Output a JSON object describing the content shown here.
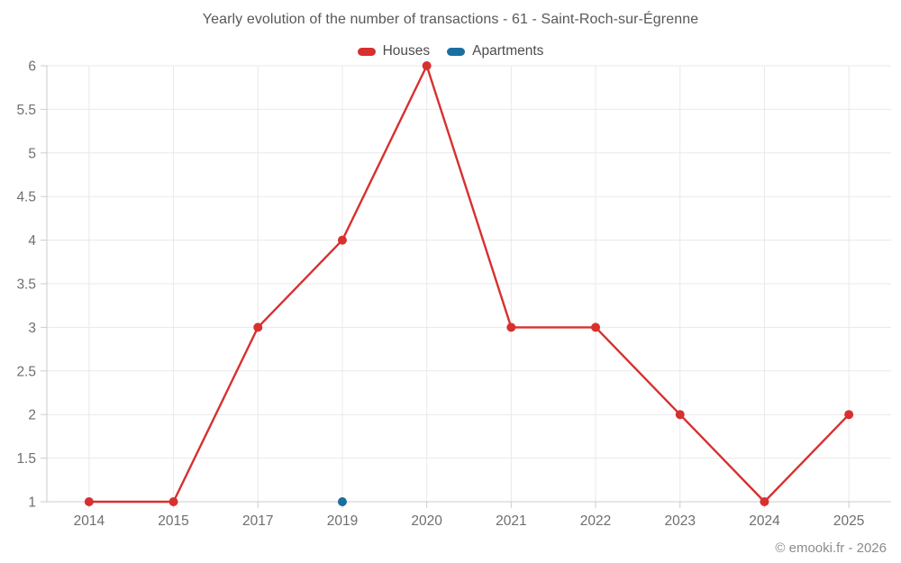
{
  "title": "Yearly evolution of the number of transactions - 61 - Saint-Roch-sur-Égrenne",
  "legend": {
    "items": [
      {
        "label": "Houses",
        "color": "#d7302f"
      },
      {
        "label": "Apartments",
        "color": "#1a6f9f"
      }
    ]
  },
  "footer": "© emooki.fr - 2026",
  "colors": {
    "grid": "#e9e9e9",
    "axis": "#cccccc",
    "axis_label": "#6e6e6e",
    "title_text": "#58585a",
    "legend_text": "#4d4d4d",
    "footer_text": "#8c8c8c",
    "background": "#ffffff"
  },
  "chart_data": {
    "type": "line",
    "title": "Yearly evolution of the number of transactions - 61 - Saint-Roch-sur-Égrenne",
    "categories": [
      "2014",
      "2015",
      "2017",
      "2019",
      "2020",
      "2021",
      "2022",
      "2023",
      "2024",
      "2025"
    ],
    "series": [
      {
        "name": "Houses",
        "color": "#d7302f",
        "values": [
          1,
          1,
          3,
          4,
          6,
          3,
          3,
          2,
          1,
          2
        ]
      },
      {
        "name": "Apartments",
        "color": "#1a6f9f",
        "values": [
          null,
          null,
          null,
          1,
          null,
          null,
          null,
          null,
          null,
          null
        ]
      }
    ],
    "yticks": [
      1,
      1.5,
      2,
      2.5,
      3,
      3.5,
      4,
      4.5,
      5,
      5.5,
      6
    ],
    "ylim": [
      1,
      6
    ],
    "xlabel": "",
    "ylabel": "",
    "grid": true,
    "legend_position": "top"
  }
}
